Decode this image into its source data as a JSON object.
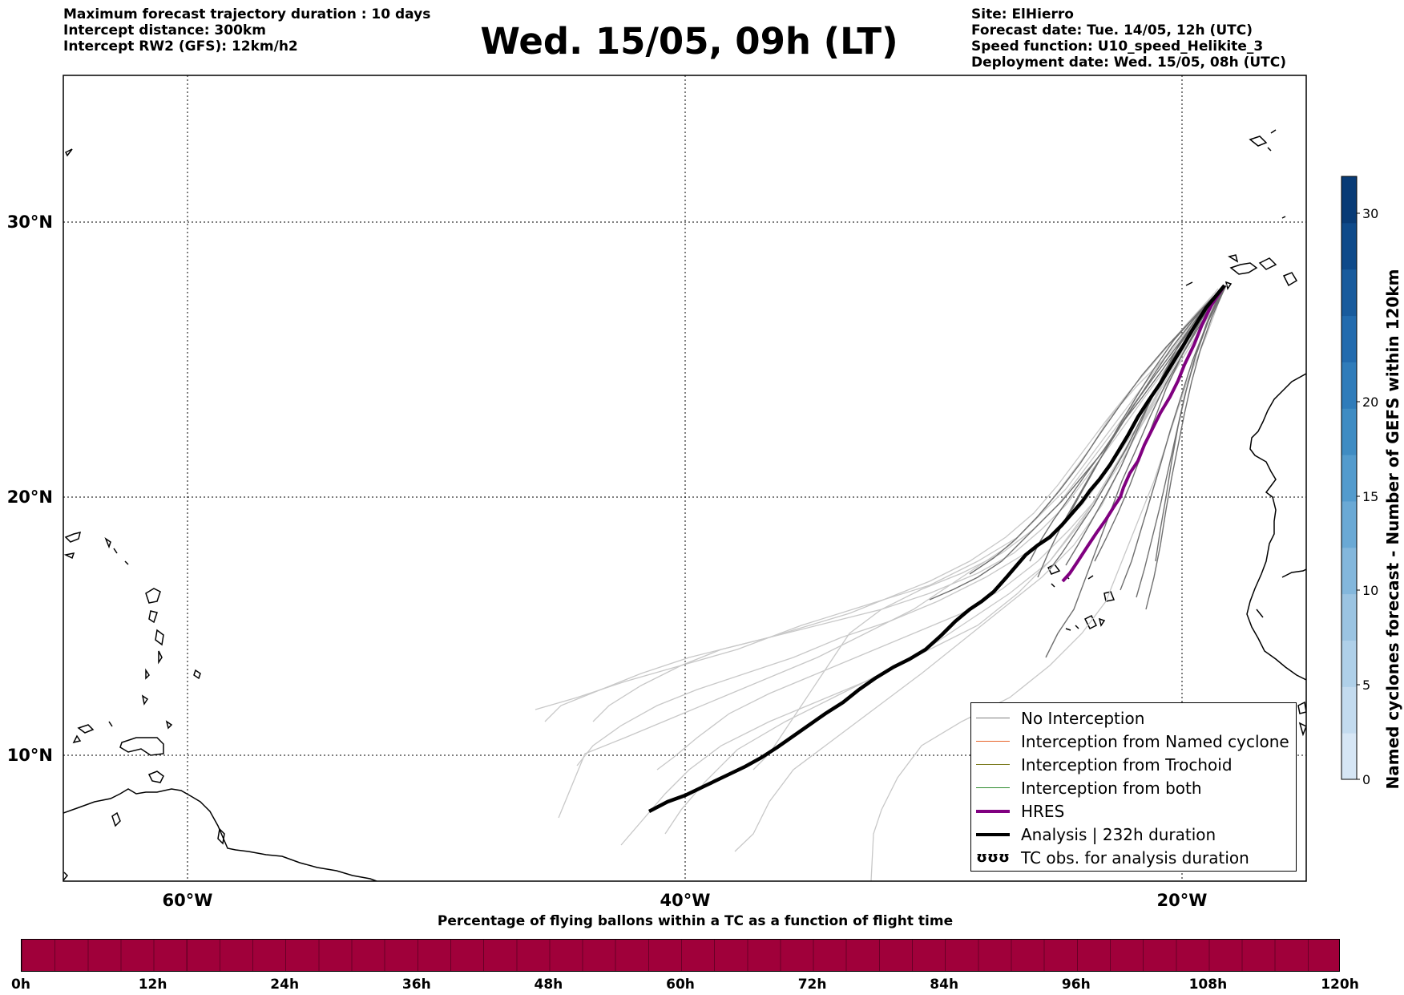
{
  "header": {
    "left": [
      "Maximum forecast trajectory duration : 10 days",
      "Intercept distance: 300km",
      "Intercept RW2 (GFS):  12km/h2"
    ],
    "title": "Wed. 15/05, 09h (LT)",
    "right": [
      "Site: ElHierro",
      "Forecast date: Tue. 14/05, 12h (UTC)",
      "Speed function: U10_speed_Helikite_3",
      "Deployment date: Wed. 15/05, 08h (UTC)"
    ]
  },
  "map": {
    "lon_range": [
      -65,
      15
    ],
    "lat_range": [
      5,
      35
    ],
    "lon_ticks": [
      "60°W",
      "40°W",
      "20°W"
    ],
    "lat_ticks": [
      "30°N",
      "20°N",
      "10°N"
    ],
    "grid": "dotted"
  },
  "legend": {
    "items": [
      {
        "label": "No Interception",
        "color": "#808080",
        "style": "thin"
      },
      {
        "label": "Interception from Named cyclone",
        "color": "#e8632a",
        "style": "thin"
      },
      {
        "label": "Interception from Trochoid",
        "color": "#7b7b1f",
        "style": "thin"
      },
      {
        "label": "Interception from both",
        "color": "#2e8b2e",
        "style": "thin"
      },
      {
        "label": "HRES",
        "color": "#800080",
        "style": "thick"
      },
      {
        "label": "Analysis | 232h duration",
        "color": "#000000",
        "style": "thick"
      },
      {
        "label": "TC obs. for analysis duration",
        "color": "#000000",
        "style": "symbol",
        "symbol": "ʊʊʊ"
      }
    ]
  },
  "colorbar": {
    "title": "Named cyclones forecast - Number of GEFS within 120km",
    "ticks": [
      "0",
      "5",
      "10",
      "15",
      "20",
      "30"
    ],
    "colors": [
      "#d6e6f5",
      "#c3dbef",
      "#afd0e9",
      "#9bc4e2",
      "#83b7dc",
      "#6aa9d5",
      "#539bcd",
      "#3f8cc3",
      "#2f7cba",
      "#226bae",
      "#185b9d",
      "#0e4a8a",
      "#083b76"
    ]
  },
  "percentage_bar": {
    "title": "Percentage of flying ballons within a TC as a function of flight time",
    "ticks": [
      "0h",
      "12h",
      "24h",
      "36h",
      "48h",
      "60h",
      "72h",
      "84h",
      "96h",
      "108h",
      "120h"
    ],
    "color": "#a0003a"
  }
}
